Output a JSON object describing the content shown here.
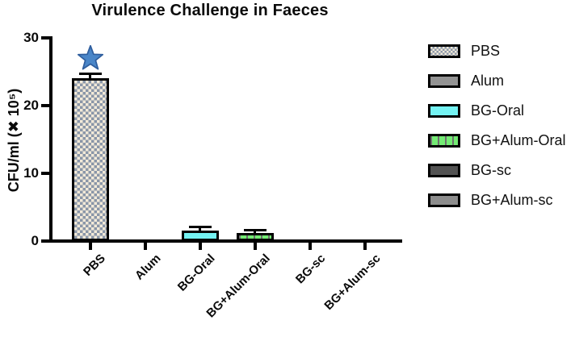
{
  "title": "Virulence Challenge in Faeces",
  "y_axis": {
    "label": "CFU/ml (✖ 10⁵)",
    "tick_labels": [
      "0",
      "10",
      "20",
      "30"
    ]
  },
  "chart_data": {
    "type": "bar",
    "title": "Virulence Challenge in Faeces",
    "xlabel": "",
    "ylabel": "CFU/ml (x 10^5)",
    "categories": [
      "PBS",
      "Alum",
      "BG-Oral",
      "BG+Alum-Oral",
      "BG-sc",
      "BG+Alum-sc"
    ],
    "values": [
      24,
      0,
      1.5,
      1.2,
      0,
      0
    ],
    "errors": [
      0.7,
      0,
      0.5,
      0.35,
      0,
      0
    ],
    "ylim": [
      0,
      30
    ],
    "yticks": [
      0,
      10,
      20,
      30
    ],
    "grid": false,
    "legend_position": "right",
    "annotations": [
      {
        "symbol": "star",
        "category": "PBS",
        "fill": "#4a86c8",
        "stroke": "#2f5e9e"
      }
    ]
  },
  "series_styles": [
    {
      "label": "PBS",
      "fill": "checker",
      "colors": [
        "#8a96a8",
        "#f2e9d8"
      ]
    },
    {
      "label": "Alum",
      "fill": "solid",
      "colors": [
        "#939393"
      ]
    },
    {
      "label": "BG-Oral",
      "fill": "solid",
      "colors": [
        "#74f3f3"
      ]
    },
    {
      "label": "BG+Alum-Oral",
      "fill": "vdash",
      "colors": [
        "#74eb74",
        "#6e6e6e"
      ]
    },
    {
      "label": "BG-sc",
      "fill": "solid",
      "colors": [
        "#525252"
      ]
    },
    {
      "label": "BG+Alum-sc",
      "fill": "solid",
      "colors": [
        "#8d8d8d"
      ]
    }
  ],
  "axis_color": "#000000"
}
